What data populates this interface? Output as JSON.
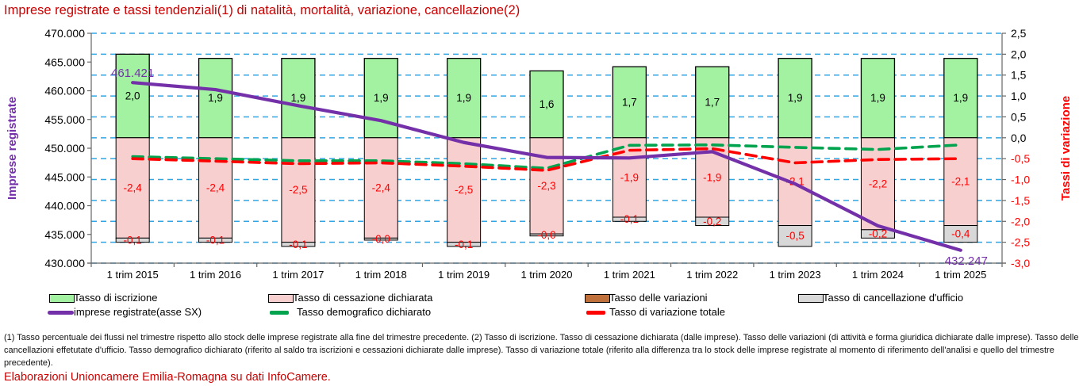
{
  "title": "Imprese registrate e tassi tendenziali(1) di natalità, mortalità, variazione, cancellazione(2)",
  "axes": {
    "left_title": "Imprese registrate",
    "right_title": "Tassi di variazione",
    "left_ticks": [
      "470.000",
      "465.000",
      "460.000",
      "455.000",
      "450.000",
      "445.000",
      "440.000",
      "435.000",
      "430.000"
    ],
    "right_ticks": [
      "2,5",
      "2,0",
      "1,5",
      "1,0",
      "0,5",
      "0,0",
      "-0,5",
      "-1,0",
      "-1,5",
      "-2,0",
      "-2,5",
      "-3,0"
    ]
  },
  "chart_data": {
    "type": "bar+line combo (stacked bars on right axis, lines on both axes)",
    "categories": [
      "1 trim 2015",
      "1 trim 2016",
      "1 trim 2017",
      "1 trim 2018",
      "1 trim 2019",
      "1 trim 2020",
      "1 trim 2021",
      "1 trim 2022",
      "1 trim 2023",
      "1 trim 2024",
      "1 trim 2025"
    ],
    "left_axis_range": [
      430000,
      470000
    ],
    "right_axis_range": [
      -3.0,
      2.5
    ],
    "grid": "horizontal dashed lines every 0,5 of right axis",
    "series": [
      {
        "name": "Tasso di iscrizione",
        "type": "bar",
        "axis": "right",
        "color": "#a2f2a2",
        "values": [
          2.0,
          1.9,
          1.9,
          1.9,
          1.9,
          1.6,
          1.7,
          1.7,
          1.9,
          1.9,
          1.9
        ],
        "labels": [
          "2,0",
          "1,9",
          "1,9",
          "1,9",
          "1,9",
          "1,6",
          "1,7",
          "1,7",
          "1,9",
          "1,9",
          "1,9"
        ]
      },
      {
        "name": "Tasso di cessazione dichiarata",
        "type": "bar",
        "axis": "right",
        "color": "#f8cfcf",
        "values": [
          -2.4,
          -2.4,
          -2.5,
          -2.4,
          -2.5,
          -2.3,
          -1.9,
          -1.9,
          -2.1,
          -2.2,
          -2.1
        ],
        "labels": [
          "-2,4",
          "-2,4",
          "-2,5",
          "-2,4",
          "-2,5",
          "-2,3",
          "-1,9",
          "-1,9",
          "-2,1",
          "-2,2",
          "-2,1"
        ]
      },
      {
        "name": "Tasso delle variazioni",
        "type": "bar",
        "axis": "right",
        "color": "#c0703a",
        "values": [
          0,
          0,
          0,
          0,
          0,
          0,
          0,
          0,
          0,
          0,
          0
        ],
        "labels": [
          "",
          "",
          "",
          "",
          "",
          "",
          "",
          "",
          "",
          "",
          ""
        ]
      },
      {
        "name": "Tasso di cancellazione d'ufficio",
        "type": "bar",
        "axis": "right",
        "color": "#d8d8d8",
        "values": [
          -0.1,
          -0.1,
          -0.1,
          -0.0,
          -0.1,
          -0.0,
          -0.1,
          -0.2,
          -0.5,
          -0.2,
          -0.4
        ],
        "labels": [
          "-0,1",
          "-0,1",
          "-0,1",
          "-0,0",
          "-0,1",
          "-0,0",
          "-0,1",
          "-0,2",
          "-0,5",
          "-0,2",
          "-0,4"
        ]
      },
      {
        "name": "imprese registrate(asse SX)",
        "type": "line",
        "axis": "left",
        "color": "#7330a8",
        "values": [
          461421,
          460200,
          457400,
          454800,
          451000,
          448400,
          448300,
          449400,
          443800,
          436500,
          432247
        ],
        "first_point_label": "461.421",
        "last_point_label": "432.247"
      },
      {
        "name": "Tasso demografico dichiarato",
        "type": "dashed-line",
        "axis": "right",
        "color": "#00a44f",
        "values": [
          -0.45,
          -0.5,
          -0.55,
          -0.55,
          -0.62,
          -0.73,
          -0.18,
          -0.17,
          -0.23,
          -0.28,
          -0.17
        ]
      },
      {
        "name": "Tasso di variazione totale",
        "type": "dashed-line",
        "axis": "right",
        "color": "#ff0000",
        "values": [
          -0.5,
          -0.56,
          -0.62,
          -0.6,
          -0.68,
          -0.78,
          -0.3,
          -0.26,
          -0.6,
          -0.52,
          -0.5
        ]
      }
    ]
  },
  "legend": {
    "items": [
      {
        "label": "Tasso di iscrizione",
        "marker": "bar",
        "color": "#a2f2a2"
      },
      {
        "label": "Tasso di cessazione dichiarata",
        "marker": "bar",
        "color": "#f8cfcf"
      },
      {
        "label": "Tasso delle variazioni",
        "marker": "bar",
        "color": "#c0703a"
      },
      {
        "label": "Tasso di cancellazione d'ufficio",
        "marker": "bar",
        "color": "#d8d8d8"
      },
      {
        "label": "imprese registrate(asse SX)",
        "marker": "line",
        "color": "#7330a8"
      },
      {
        "label": "Tasso demografico dichiarato",
        "marker": "dash",
        "color": "#00a44f"
      },
      {
        "label": "Tasso di variazione totale",
        "marker": "dash",
        "color": "#ff0000"
      }
    ]
  },
  "footnote": "(1) Tasso percentuale dei flussi nel trimestre rispetto allo stock delle imprese registrate alla fine del trimestre precedente. (2) Tasso di iscrizione. Tasso di cessazione dichiarata (dalle imprese). Tasso delle variazioni (di attività e forma giuridica dichiarate dalle imprese). Tasso delle cancellazioni effetutate d'ufficio. Tasso demografico dichiarato (riferito al saldo tra iscrizioni e cessazioni dichiarate dalle imprese). Tasso di variazione totale (riferito alla differenza tra lo stock delle imprese registrate al momento di riferimento dell'analisi e quello del trimestre precedente).",
  "source": "Elaborazioni Unioncamere Emilia-Romagna su dati InfoCamere.",
  "colors": {
    "title": "#cc0000",
    "grid": "#2ca7e8",
    "axis": "#666666",
    "left_axis_title": "#7330a8",
    "right_axis_title": "#ff0000",
    "negative_tick": "#ff0000"
  }
}
